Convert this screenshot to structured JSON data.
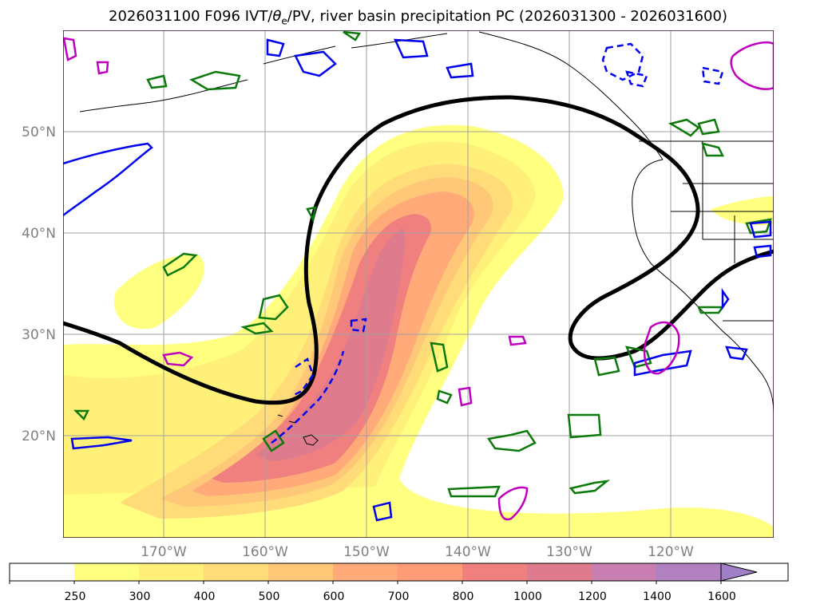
{
  "title": {
    "prefix": "2026031100 F096 IVT/",
    "theta": "θ",
    "theta_sub": "e",
    "suffix": "/PV, river basin precipitation PC (2026031300 - 2026031600)"
  },
  "map": {
    "lat_labels": [
      "50°N",
      "40°N",
      "30°N",
      "20°N"
    ],
    "lon_labels": [
      "170°W",
      "160°W",
      "150°W",
      "140°W",
      "130°W",
      "120°W"
    ],
    "colors": {
      "frame": "#2a0a2a",
      "grid": "#a0a0a0",
      "coast": "#000000",
      "theta_e_contour": "#000000",
      "pv_positive": "#0b7a0b",
      "pv_negative": "#0000ee",
      "precip_pc": "#c000c0"
    }
  },
  "colorbar": {
    "levels": [
      "250",
      "300",
      "400",
      "500",
      "600",
      "700",
      "800",
      "1000",
      "1200",
      "1400",
      "1600"
    ],
    "colors": [
      "#ffffff",
      "#ffff80",
      "#fff07a",
      "#ffdc78",
      "#ffc878",
      "#ffaa78",
      "#ff9c78",
      "#f08080",
      "#de7c8e",
      "#c87eb0",
      "#b080c0",
      "#a07ec8"
    ],
    "extend": "max"
  }
}
